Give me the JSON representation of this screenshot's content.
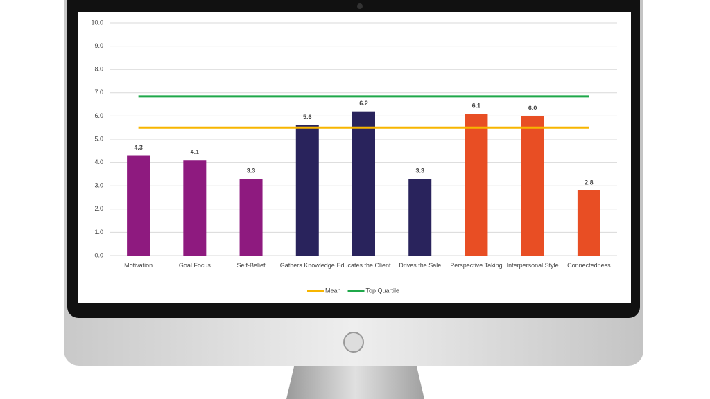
{
  "chart_data": {
    "type": "bar",
    "categories": [
      "Motivation",
      "Goal Focus",
      "Self-Belief",
      "Gathers Knowledge",
      "Educates the Client",
      "Drives the Sale",
      "Perspective Taking",
      "Interpersonal Style",
      "Connectedness"
    ],
    "values": [
      4.3,
      4.1,
      3.3,
      5.6,
      6.2,
      3.3,
      6.1,
      6.0,
      2.8
    ],
    "value_labels": [
      "4.3",
      "4.1",
      "3.3",
      "5.6",
      "6.2",
      "3.3",
      "6.1",
      "6.0",
      "2.8"
    ],
    "colors": [
      "#8e1a7f",
      "#8e1a7f",
      "#8e1a7f",
      "#29235c",
      "#29235c",
      "#29235c",
      "#e84e24",
      "#e84e24",
      "#e84e24"
    ],
    "reference_lines": [
      {
        "name": "Mean",
        "color": "#f7b500",
        "value": 5.5
      },
      {
        "name": "Top Quartile",
        "color": "#1fa84a",
        "value": 6.85
      }
    ],
    "ylim": [
      0,
      10
    ],
    "yticks": [
      {
        "value": 0,
        "label": "0.0"
      },
      {
        "value": 1,
        "label": "1.0"
      },
      {
        "value": 2,
        "label": "2.0"
      },
      {
        "value": 3,
        "label": "3.0"
      },
      {
        "value": 4,
        "label": "4.0"
      },
      {
        "value": 5,
        "label": "5.0"
      },
      {
        "value": 6,
        "label": "6.0"
      },
      {
        "value": 7,
        "label": "7.0"
      },
      {
        "value": 8,
        "label": "8.0"
      },
      {
        "value": 9,
        "label": "9.0"
      },
      {
        "value": 10,
        "label": "10.0"
      }
    ],
    "grid": true
  }
}
